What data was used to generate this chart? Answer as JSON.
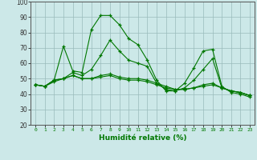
{
  "xlabel": "Humidité relative (%)",
  "x": [
    0,
    1,
    2,
    3,
    4,
    5,
    6,
    7,
    8,
    9,
    10,
    11,
    12,
    13,
    14,
    15,
    16,
    17,
    18,
    19,
    20,
    21,
    22,
    23
  ],
  "line1": [
    46,
    45,
    49,
    71,
    55,
    54,
    82,
    91,
    91,
    85,
    76,
    72,
    62,
    49,
    42,
    42,
    47,
    57,
    68,
    69,
    45,
    41,
    40,
    38
  ],
  "line2": [
    46,
    45,
    49,
    50,
    54,
    52,
    56,
    65,
    75,
    68,
    62,
    60,
    58,
    47,
    43,
    42,
    44,
    49,
    56,
    63,
    44,
    42,
    41,
    39
  ],
  "line3": [
    46,
    45,
    49,
    50,
    52,
    50,
    50,
    52,
    53,
    51,
    50,
    50,
    49,
    47,
    45,
    43,
    43,
    44,
    46,
    47,
    44,
    42,
    41,
    39
  ],
  "line4": [
    46,
    45,
    48,
    50,
    52,
    50,
    50,
    51,
    52,
    50,
    49,
    49,
    48,
    46,
    44,
    43,
    43,
    44,
    45,
    46,
    44,
    42,
    41,
    39
  ],
  "ylim": [
    20,
    100
  ],
  "yticks": [
    20,
    30,
    40,
    50,
    60,
    70,
    80,
    90,
    100
  ],
  "line_color": "#007700",
  "bg_color": "#cce8e8",
  "grid_color": "#99bbbb"
}
